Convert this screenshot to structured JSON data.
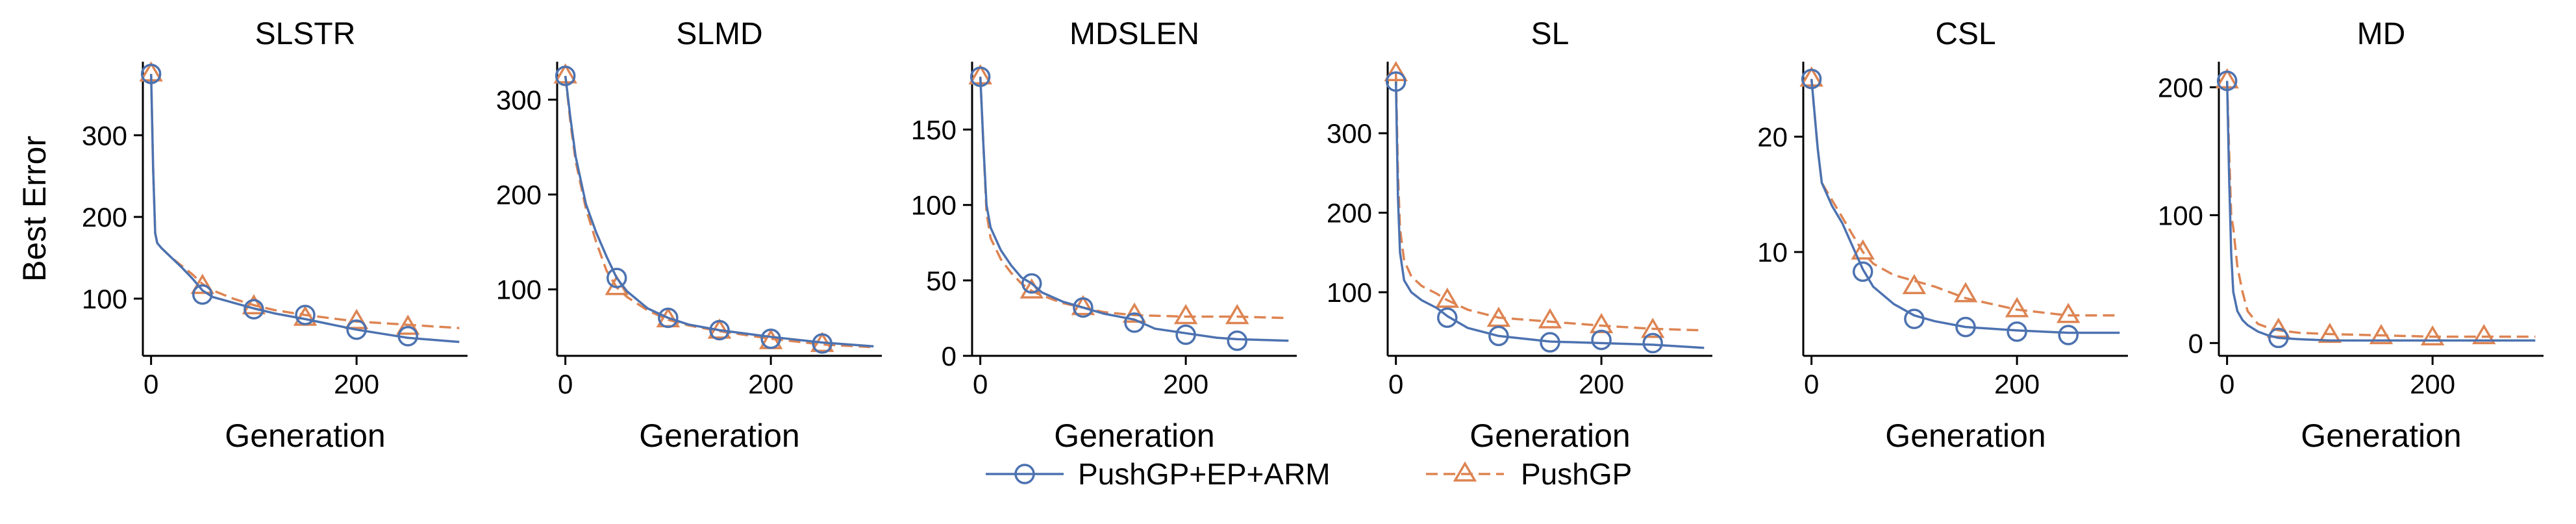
{
  "chart_data": [
    {
      "type": "line",
      "title": "SLSTR",
      "xlabel": "Generation",
      "ylabel": "Best Error",
      "xlim": [
        -8,
        308
      ],
      "ylim": [
        30,
        390
      ],
      "xticks": [
        0,
        200
      ],
      "yticks": [
        100,
        200,
        300
      ],
      "series": [
        {
          "name": "PushGP+EP+ARM",
          "x": [
            0,
            2,
            4,
            6,
            10,
            20,
            30,
            40,
            50,
            60,
            80,
            100,
            120,
            150,
            200,
            250,
            300
          ],
          "y": [
            375,
            260,
            180,
            168,
            162,
            150,
            138,
            125,
            110,
            102,
            95,
            88,
            82,
            75,
            62,
            52,
            47
          ],
          "marker_x": [
            0,
            50,
            100,
            150,
            200,
            250
          ],
          "marker_y": [
            375,
            105,
            87,
            80,
            62,
            54
          ]
        },
        {
          "name": "PushGP",
          "x": [
            0,
            2,
            4,
            6,
            10,
            20,
            30,
            40,
            50,
            60,
            80,
            100,
            120,
            150,
            200,
            250,
            300
          ],
          "y": [
            375,
            260,
            180,
            168,
            162,
            150,
            140,
            130,
            118,
            110,
            100,
            92,
            86,
            80,
            72,
            68,
            64
          ],
          "marker_x": [
            0,
            50,
            100,
            150,
            200,
            250
          ],
          "marker_y": [
            375,
            115,
            90,
            76,
            72,
            65
          ]
        }
      ]
    },
    {
      "type": "line",
      "title": "SLMD",
      "xlabel": "Generation",
      "ylabel": "",
      "xlim": [
        -8,
        308
      ],
      "ylim": [
        30,
        340
      ],
      "xticks": [
        0,
        200
      ],
      "yticks": [
        100,
        200,
        300
      ],
      "series": [
        {
          "name": "PushGP+EP+ARM",
          "x": [
            0,
            5,
            10,
            20,
            30,
            40,
            50,
            60,
            80,
            100,
            120,
            150,
            200,
            250,
            300
          ],
          "y": [
            325,
            280,
            240,
            190,
            160,
            135,
            112,
            98,
            80,
            70,
            63,
            57,
            50,
            44,
            40
          ],
          "marker_x": [
            0,
            50,
            100,
            150,
            200,
            250
          ],
          "marker_y": [
            325,
            112,
            70,
            57,
            48,
            43
          ]
        },
        {
          "name": "PushGP",
          "x": [
            0,
            5,
            10,
            20,
            30,
            40,
            50,
            60,
            80,
            100,
            120,
            150,
            200,
            250,
            300
          ],
          "y": [
            325,
            275,
            235,
            185,
            150,
            120,
            102,
            92,
            78,
            68,
            62,
            56,
            48,
            42,
            39
          ],
          "marker_x": [
            0,
            50,
            100,
            150,
            200,
            250
          ],
          "marker_y": [
            325,
            102,
            68,
            56,
            45,
            42
          ]
        }
      ]
    },
    {
      "type": "line",
      "title": "MDSLEN",
      "xlabel": "Generation",
      "ylabel": "",
      "xlim": [
        -8,
        308
      ],
      "ylim": [
        0,
        195
      ],
      "xticks": [
        0,
        200
      ],
      "yticks": [
        0,
        50,
        100,
        150
      ],
      "series": [
        {
          "name": "PushGP+EP+ARM",
          "x": [
            0,
            3,
            6,
            10,
            20,
            30,
            40,
            50,
            60,
            80,
            100,
            120,
            150,
            170,
            200,
            230,
            250,
            300
          ],
          "y": [
            185,
            140,
            100,
            85,
            70,
            60,
            52,
            48,
            42,
            36,
            32,
            28,
            24,
            18,
            15,
            12,
            11,
            10
          ],
          "marker_x": [
            0,
            50,
            100,
            150,
            200,
            250
          ],
          "marker_y": [
            185,
            48,
            32,
            22,
            14,
            10
          ]
        },
        {
          "name": "PushGP",
          "x": [
            0,
            3,
            6,
            10,
            20,
            30,
            40,
            50,
            60,
            80,
            100,
            120,
            150,
            200,
            250,
            300
          ],
          "y": [
            185,
            140,
            95,
            78,
            64,
            55,
            48,
            43,
            40,
            35,
            32,
            29,
            27,
            26,
            26,
            25
          ],
          "marker_x": [
            0,
            50,
            100,
            150,
            200,
            250
          ],
          "marker_y": [
            185,
            43,
            32,
            27,
            26,
            26
          ]
        }
      ]
    },
    {
      "type": "line",
      "title": "SL",
      "xlabel": "Generation",
      "ylabel": "",
      "xlim": [
        -8,
        308
      ],
      "ylim": [
        20,
        390
      ],
      "xticks": [
        0,
        200
      ],
      "yticks": [
        100,
        200,
        300
      ],
      "series": [
        {
          "name": "PushGP+EP+ARM",
          "x": [
            0,
            2,
            4,
            8,
            15,
            25,
            40,
            50,
            70,
            100,
            150,
            200,
            250,
            300
          ],
          "y": [
            365,
            220,
            150,
            115,
            100,
            90,
            80,
            70,
            55,
            45,
            38,
            36,
            34,
            30
          ],
          "marker_x": [
            0,
            50,
            100,
            150,
            200,
            250
          ],
          "marker_y": [
            365,
            68,
            45,
            37,
            40,
            36
          ]
        },
        {
          "name": "PushGP",
          "x": [
            0,
            2,
            4,
            8,
            15,
            25,
            40,
            50,
            70,
            100,
            150,
            200,
            250,
            300
          ],
          "y": [
            375,
            250,
            180,
            140,
            120,
            108,
            98,
            90,
            78,
            68,
            63,
            58,
            54,
            52
          ],
          "marker_x": [
            0,
            50,
            100,
            150,
            200,
            250
          ],
          "marker_y": [
            375,
            90,
            66,
            64,
            58,
            52
          ]
        }
      ]
    },
    {
      "type": "line",
      "title": "CSL",
      "xlabel": "Generation",
      "ylabel": "",
      "xlim": [
        -8,
        308
      ],
      "ylim": [
        1,
        26.5
      ],
      "xticks": [
        0,
        200
      ],
      "yticks": [
        10,
        20
      ],
      "series": [
        {
          "name": "PushGP+EP+ARM",
          "x": [
            0,
            3,
            6,
            10,
            20,
            30,
            40,
            50,
            60,
            80,
            100,
            120,
            150,
            200,
            250,
            300
          ],
          "y": [
            25,
            22,
            19,
            16,
            14,
            12.5,
            10.5,
            8.5,
            7,
            5.5,
            4.5,
            4,
            3.5,
            3.2,
            3,
            3
          ],
          "marker_x": [
            0,
            50,
            100,
            150,
            200,
            250
          ],
          "marker_y": [
            25,
            8.3,
            4.2,
            3.5,
            3.1,
            2.8
          ]
        },
        {
          "name": "PushGP",
          "x": [
            0,
            3,
            6,
            10,
            20,
            30,
            40,
            50,
            60,
            80,
            100,
            120,
            150,
            200,
            250,
            300
          ],
          "y": [
            25,
            22,
            19,
            16,
            14.5,
            13,
            11.5,
            10,
            9,
            8,
            7.5,
            7,
            6,
            5,
            4.5,
            4.5
          ],
          "marker_x": [
            0,
            50,
            100,
            150,
            200,
            250
          ],
          "marker_y": [
            25,
            10,
            7,
            6.3,
            5,
            4.5
          ]
        }
      ]
    },
    {
      "type": "line",
      "title": "MD",
      "xlabel": "Generation",
      "ylabel": "",
      "xlim": [
        -8,
        308
      ],
      "ylim": [
        -10,
        220
      ],
      "xticks": [
        0,
        200
      ],
      "yticks": [
        0,
        100,
        200
      ],
      "series": [
        {
          "name": "PushGP+EP+ARM",
          "x": [
            0,
            2,
            4,
            6,
            10,
            15,
            20,
            30,
            40,
            50,
            70,
            100,
            150,
            200,
            300
          ],
          "y": [
            205,
            130,
            70,
            40,
            25,
            18,
            14,
            9,
            6,
            4,
            3,
            2,
            2,
            2,
            2
          ],
          "marker_x": [
            0,
            50
          ],
          "marker_y": [
            205,
            4
          ]
        },
        {
          "name": "PushGP",
          "x": [
            0,
            2,
            4,
            6,
            10,
            15,
            20,
            30,
            40,
            50,
            70,
            100,
            150,
            200,
            250,
            300
          ],
          "y": [
            205,
            150,
            100,
            90,
            60,
            40,
            25,
            15,
            12,
            10,
            8,
            7,
            6,
            5,
            5,
            5
          ],
          "marker_x": [
            0,
            50,
            100,
            150,
            200,
            250
          ],
          "marker_y": [
            205,
            10,
            6,
            5,
            4,
            5
          ]
        }
      ]
    }
  ],
  "legend": {
    "placement": "bottom-center",
    "entries": [
      "PushGP+EP+ARM",
      "PushGP"
    ]
  },
  "colors": {
    "PushGP+EP+ARM": "#4c72b0",
    "PushGP": "#dd8452"
  }
}
